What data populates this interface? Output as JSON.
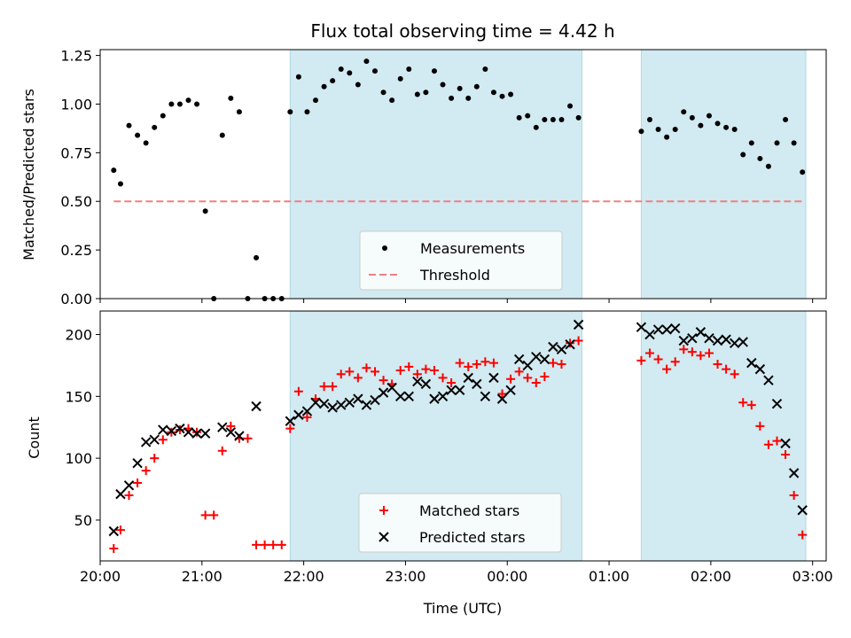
{
  "chart_data": [
    {
      "type": "scatter",
      "title": "Flux total observing time = 4.42 h",
      "xlabel": "",
      "ylabel": "Matched/Predicted stars",
      "ylim": [
        0,
        1.28
      ],
      "xlim": [
        "20:00",
        "03:08"
      ],
      "x_ticks": [
        "20:00",
        "21:00",
        "22:00",
        "23:00",
        "00:00",
        "01:00",
        "02:00",
        "03:00"
      ],
      "y_ticks": [
        "0.00",
        "0.25",
        "0.50",
        "0.75",
        "1.00",
        "1.25"
      ],
      "shaded_intervals": [
        [
          "21:52",
          "00:44"
        ],
        [
          "01:19",
          "02:56"
        ]
      ],
      "shade_color": "#add8e6",
      "legend_position": "lower-center",
      "series": [
        {
          "name": "Measurements",
          "marker": "dot",
          "color": "#000000",
          "points": [
            [
              "20:08",
              0.66
            ],
            [
              "20:12",
              0.59
            ],
            [
              "20:17",
              0.89
            ],
            [
              "20:22",
              0.84
            ],
            [
              "20:27",
              0.8
            ],
            [
              "20:32",
              0.88
            ],
            [
              "20:37",
              0.94
            ],
            [
              "20:42",
              1.0
            ],
            [
              "20:47",
              1.0
            ],
            [
              "20:52",
              1.02
            ],
            [
              "20:57",
              1.0
            ],
            [
              "21:02",
              0.45
            ],
            [
              "21:07",
              0.0
            ],
            [
              "21:12",
              0.84
            ],
            [
              "21:17",
              1.03
            ],
            [
              "21:22",
              0.96
            ],
            [
              "21:27",
              0.0
            ],
            [
              "21:32",
              0.21
            ],
            [
              "21:37",
              0.0
            ],
            [
              "21:42",
              0.0
            ],
            [
              "21:47",
              0.0
            ],
            [
              "21:52",
              0.96
            ],
            [
              "21:57",
              1.14
            ],
            [
              "22:02",
              0.96
            ],
            [
              "22:07",
              1.02
            ],
            [
              "22:12",
              1.09
            ],
            [
              "22:17",
              1.12
            ],
            [
              "22:22",
              1.18
            ],
            [
              "22:27",
              1.16
            ],
            [
              "22:32",
              1.1
            ],
            [
              "22:37",
              1.22
            ],
            [
              "22:42",
              1.17
            ],
            [
              "22:47",
              1.06
            ],
            [
              "22:52",
              1.02
            ],
            [
              "22:57",
              1.13
            ],
            [
              "23:02",
              1.18
            ],
            [
              "23:07",
              1.05
            ],
            [
              "23:12",
              1.06
            ],
            [
              "23:17",
              1.17
            ],
            [
              "23:22",
              1.1
            ],
            [
              "23:27",
              1.03
            ],
            [
              "23:32",
              1.08
            ],
            [
              "23:37",
              1.03
            ],
            [
              "23:42",
              1.09
            ],
            [
              "23:47",
              1.18
            ],
            [
              "23:52",
              1.06
            ],
            [
              "23:57",
              1.04
            ],
            [
              "00:02",
              1.05
            ],
            [
              "00:07",
              0.93
            ],
            [
              "00:12",
              0.94
            ],
            [
              "00:17",
              0.88
            ],
            [
              "00:22",
              0.92
            ],
            [
              "00:27",
              0.92
            ],
            [
              "00:32",
              0.92
            ],
            [
              "00:37",
              0.99
            ],
            [
              "00:42",
              0.93
            ],
            [
              "01:19",
              0.86
            ],
            [
              "01:24",
              0.92
            ],
            [
              "01:29",
              0.87
            ],
            [
              "01:34",
              0.83
            ],
            [
              "01:39",
              0.87
            ],
            [
              "01:44",
              0.96
            ],
            [
              "01:49",
              0.93
            ],
            [
              "01:54",
              0.89
            ],
            [
              "01:59",
              0.94
            ],
            [
              "02:04",
              0.9
            ],
            [
              "02:09",
              0.88
            ],
            [
              "02:14",
              0.87
            ],
            [
              "02:19",
              0.74
            ],
            [
              "02:24",
              0.8
            ],
            [
              "02:29",
              0.72
            ],
            [
              "02:34",
              0.68
            ],
            [
              "02:39",
              0.8
            ],
            [
              "02:44",
              0.92
            ],
            [
              "02:49",
              0.8
            ],
            [
              "02:54",
              0.65
            ]
          ]
        },
        {
          "name": "Threshold",
          "marker": "dashed-line",
          "color": "#f08080",
          "points": [
            [
              "20:08",
              0.5
            ],
            [
              "02:54",
              0.5
            ]
          ]
        }
      ]
    },
    {
      "type": "scatter",
      "title": "",
      "xlabel": "Time (UTC)",
      "ylabel": "Count",
      "ylim": [
        17,
        219
      ],
      "xlim": [
        "20:00",
        "03:08"
      ],
      "x_ticks": [
        "20:00",
        "21:00",
        "22:00",
        "23:00",
        "00:00",
        "01:00",
        "02:00",
        "03:00"
      ],
      "y_ticks": [
        "50",
        "100",
        "150",
        "200"
      ],
      "shaded_intervals": [
        [
          "21:52",
          "00:44"
        ],
        [
          "01:19",
          "02:56"
        ]
      ],
      "shade_color": "#add8e6",
      "legend_position": "lower-center",
      "series": [
        {
          "name": "Matched stars",
          "marker": "plus",
          "color": "#ff0000",
          "points": [
            [
              "20:08",
              27
            ],
            [
              "20:12",
              42
            ],
            [
              "20:17",
              70
            ],
            [
              "20:22",
              80
            ],
            [
              "20:27",
              90
            ],
            [
              "20:32",
              100
            ],
            [
              "20:37",
              115
            ],
            [
              "20:42",
              121
            ],
            [
              "20:47",
              123
            ],
            [
              "20:52",
              124
            ],
            [
              "20:57",
              121
            ],
            [
              "21:02",
              54
            ],
            [
              "21:07",
              54
            ],
            [
              "21:12",
              106
            ],
            [
              "21:17",
              126
            ],
            [
              "21:22",
              116
            ],
            [
              "21:27",
              116
            ],
            [
              "21:32",
              30
            ],
            [
              "21:37",
              30
            ],
            [
              "21:42",
              30
            ],
            [
              "21:47",
              30
            ],
            [
              "21:52",
              124
            ],
            [
              "21:57",
              154
            ],
            [
              "22:02",
              133
            ],
            [
              "22:07",
              148
            ],
            [
              "22:12",
              158
            ],
            [
              "22:17",
              158
            ],
            [
              "22:22",
              168
            ],
            [
              "22:27",
              170
            ],
            [
              "22:32",
              165
            ],
            [
              "22:37",
              173
            ],
            [
              "22:42",
              170
            ],
            [
              "22:47",
              163
            ],
            [
              "22:52",
              160
            ],
            [
              "22:57",
              171
            ],
            [
              "23:02",
              174
            ],
            [
              "23:07",
              168
            ],
            [
              "23:12",
              172
            ],
            [
              "23:17",
              171
            ],
            [
              "23:22",
              165
            ],
            [
              "23:27",
              161
            ],
            [
              "23:32",
              177
            ],
            [
              "23:37",
              174
            ],
            [
              "23:42",
              176
            ],
            [
              "23:47",
              178
            ],
            [
              "23:52",
              177
            ],
            [
              "23:57",
              152
            ],
            [
              "00:02",
              164
            ],
            [
              "00:07",
              170
            ],
            [
              "00:12",
              165
            ],
            [
              "00:17",
              161
            ],
            [
              "00:22",
              166
            ],
            [
              "00:27",
              177
            ],
            [
              "00:32",
              176
            ],
            [
              "00:37",
              193
            ],
            [
              "00:42",
              195
            ],
            [
              "01:19",
              179
            ],
            [
              "01:24",
              185
            ],
            [
              "01:29",
              180
            ],
            [
              "01:34",
              172
            ],
            [
              "01:39",
              178
            ],
            [
              "01:44",
              188
            ],
            [
              "01:49",
              186
            ],
            [
              "01:54",
              183
            ],
            [
              "01:59",
              185
            ],
            [
              "02:04",
              176
            ],
            [
              "02:09",
              172
            ],
            [
              "02:14",
              168
            ],
            [
              "02:19",
              145
            ],
            [
              "02:24",
              143
            ],
            [
              "02:29",
              126
            ],
            [
              "02:34",
              111
            ],
            [
              "02:39",
              114
            ],
            [
              "02:44",
              103
            ],
            [
              "02:49",
              70
            ],
            [
              "02:54",
              38
            ]
          ]
        },
        {
          "name": "Predicted stars",
          "marker": "x",
          "color": "#000000",
          "points": [
            [
              "20:08",
              41
            ],
            [
              "20:12",
              71
            ],
            [
              "20:17",
              78
            ],
            [
              "20:22",
              96
            ],
            [
              "20:27",
              113
            ],
            [
              "20:32",
              115
            ],
            [
              "20:37",
              123
            ],
            [
              "20:42",
              122
            ],
            [
              "20:47",
              124
            ],
            [
              "20:52",
              121
            ],
            [
              "20:57",
              120
            ],
            [
              "21:02",
              120
            ],
            [
              "21:12",
              125
            ],
            [
              "21:17",
              121
            ],
            [
              "21:22",
              118
            ],
            [
              "21:32",
              142
            ],
            [
              "21:52",
              130
            ],
            [
              "21:57",
              135
            ],
            [
              "22:02",
              138
            ],
            [
              "22:07",
              145
            ],
            [
              "22:12",
              144
            ],
            [
              "22:17",
              141
            ],
            [
              "22:22",
              143
            ],
            [
              "22:27",
              145
            ],
            [
              "22:32",
              148
            ],
            [
              "22:37",
              143
            ],
            [
              "22:42",
              147
            ],
            [
              "22:47",
              153
            ],
            [
              "22:52",
              157
            ],
            [
              "22:57",
              150
            ],
            [
              "23:02",
              150
            ],
            [
              "23:07",
              162
            ],
            [
              "23:12",
              160
            ],
            [
              "23:17",
              148
            ],
            [
              "23:22",
              150
            ],
            [
              "23:27",
              155
            ],
            [
              "23:32",
              155
            ],
            [
              "23:37",
              165
            ],
            [
              "23:42",
              160
            ],
            [
              "23:47",
              150
            ],
            [
              "23:52",
              165
            ],
            [
              "23:57",
              148
            ],
            [
              "00:02",
              155
            ],
            [
              "00:07",
              180
            ],
            [
              "00:12",
              175
            ],
            [
              "00:17",
              182
            ],
            [
              "00:22",
              180
            ],
            [
              "00:27",
              190
            ],
            [
              "00:32",
              188
            ],
            [
              "00:37",
              192
            ],
            [
              "00:42",
              208
            ],
            [
              "01:19",
              206
            ],
            [
              "01:24",
              200
            ],
            [
              "01:29",
              204
            ],
            [
              "01:34",
              204
            ],
            [
              "01:39",
              205
            ],
            [
              "01:44",
              195
            ],
            [
              "01:49",
              197
            ],
            [
              "01:54",
              202
            ],
            [
              "01:59",
              197
            ],
            [
              "02:04",
              195
            ],
            [
              "02:09",
              196
            ],
            [
              "02:14",
              193
            ],
            [
              "02:19",
              194
            ],
            [
              "02:24",
              177
            ],
            [
              "02:29",
              172
            ],
            [
              "02:34",
              163
            ],
            [
              "02:39",
              144
            ],
            [
              "02:44",
              112
            ],
            [
              "02:49",
              88
            ],
            [
              "02:54",
              58
            ]
          ]
        }
      ]
    }
  ]
}
